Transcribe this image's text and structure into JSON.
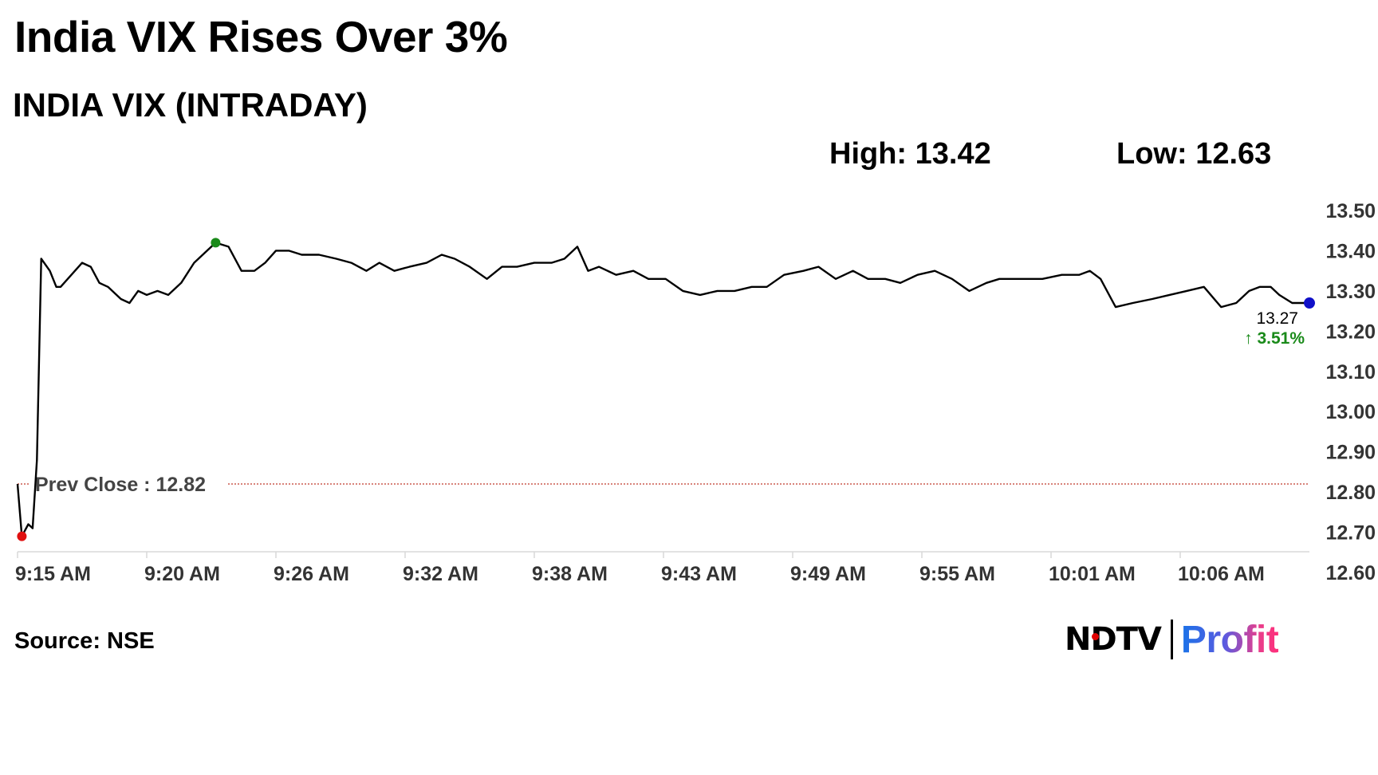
{
  "header": {
    "title": "India VIX Rises Over 3%",
    "subtitle": "INDIA VIX (INTRADAY)",
    "high_label": "High: 13.42",
    "low_label": "Low: 12.63"
  },
  "footer": {
    "source": "Source: NSE",
    "logo_ndtv": "NDTV",
    "logo_profit": "Profit"
  },
  "colors": {
    "line": "#000000",
    "prev_close": "#c0392b",
    "high_marker": "#1a8a1a",
    "low_marker": "#e01010",
    "last_marker": "#1010c8",
    "change_text": "#1a8a1a",
    "gridline": "#d9d9d9"
  },
  "chart_data": {
    "type": "line",
    "title": "INDIA VIX (INTRADAY)",
    "xlabel": "",
    "ylabel": "",
    "x_ticks": [
      "9:15 AM",
      "9:20 AM",
      "9:26 AM",
      "9:32 AM",
      "9:38 AM",
      "9:43 AM",
      "9:49 AM",
      "9:55 AM",
      "10:01 AM",
      "10:06 AM"
    ],
    "y_ticks": [
      "12.60",
      "12.70",
      "12.80",
      "12.90",
      "13.00",
      "13.10",
      "13.20",
      "13.30",
      "13.40",
      "13.50"
    ],
    "ylim": [
      12.6,
      13.5
    ],
    "xlim_minutes_from_open": [
      0,
      60
    ],
    "y_axis_position": "right",
    "grid": false,
    "prev_close": {
      "label": "Prev Close : 12.82",
      "value": 12.82
    },
    "high_marker": {
      "x": 9.2,
      "value": 13.42
    },
    "low_marker": {
      "x": 0.2,
      "value": 12.69
    },
    "last": {
      "label": "13.27",
      "change_label": "↑ 3.51%",
      "x": 60,
      "value": 13.27
    },
    "series": [
      {
        "x": [
          0,
          0.2,
          0.5,
          0.7,
          0.9,
          1.1,
          1.5,
          1.8,
          2.0,
          2.5,
          3.0,
          3.4,
          3.8,
          4.2,
          4.8,
          5.2,
          5.6,
          6.0,
          6.5,
          7.0,
          7.6,
          8.2,
          8.6,
          9.2,
          9.8,
          10.4,
          11.0,
          11.5,
          12.0,
          12.6,
          13.2,
          14.0,
          14.8,
          15.5,
          16.2,
          16.8,
          17.5,
          18.2,
          19.0,
          19.7,
          20.3,
          21.0,
          21.8,
          22.5,
          23.2,
          24.0,
          24.8,
          25.4,
          26.0,
          26.5,
          27.0,
          27.8,
          28.6,
          29.3,
          30.1,
          30.9,
          31.7,
          32.5,
          33.3,
          34.1,
          34.8,
          35.6,
          36.5,
          37.2,
          38.0,
          38.8,
          39.5,
          40.3,
          41.0,
          41.8,
          42.6,
          43.4,
          44.2,
          45.0,
          45.6,
          46.1,
          46.8,
          47.6,
          48.5,
          49.3,
          49.8,
          50.3,
          51.0,
          51.8,
          52.7,
          53.5,
          54.3,
          55.1,
          55.9,
          56.6,
          57.2,
          57.7,
          58.2,
          58.6,
          59.2,
          60.0
        ],
        "values": [
          12.82,
          12.69,
          12.72,
          12.71,
          12.88,
          13.38,
          13.35,
          13.31,
          13.31,
          13.34,
          13.37,
          13.36,
          13.32,
          13.31,
          13.28,
          13.27,
          13.3,
          13.29,
          13.3,
          13.29,
          13.32,
          13.37,
          13.39,
          13.42,
          13.41,
          13.35,
          13.35,
          13.37,
          13.4,
          13.4,
          13.39,
          13.39,
          13.38,
          13.37,
          13.35,
          13.37,
          13.35,
          13.36,
          13.37,
          13.39,
          13.38,
          13.36,
          13.33,
          13.36,
          13.36,
          13.37,
          13.37,
          13.38,
          13.41,
          13.35,
          13.36,
          13.34,
          13.35,
          13.33,
          13.33,
          13.3,
          13.29,
          13.3,
          13.3,
          13.31,
          13.31,
          13.34,
          13.35,
          13.36,
          13.33,
          13.35,
          13.33,
          13.33,
          13.32,
          13.34,
          13.35,
          13.33,
          13.3,
          13.32,
          13.33,
          13.33,
          13.33,
          13.33,
          13.34,
          13.34,
          13.35,
          13.33,
          13.26,
          13.27,
          13.28,
          13.29,
          13.3,
          13.31,
          13.26,
          13.27,
          13.3,
          13.31,
          13.31,
          13.29,
          13.27,
          13.27
        ]
      }
    ]
  }
}
